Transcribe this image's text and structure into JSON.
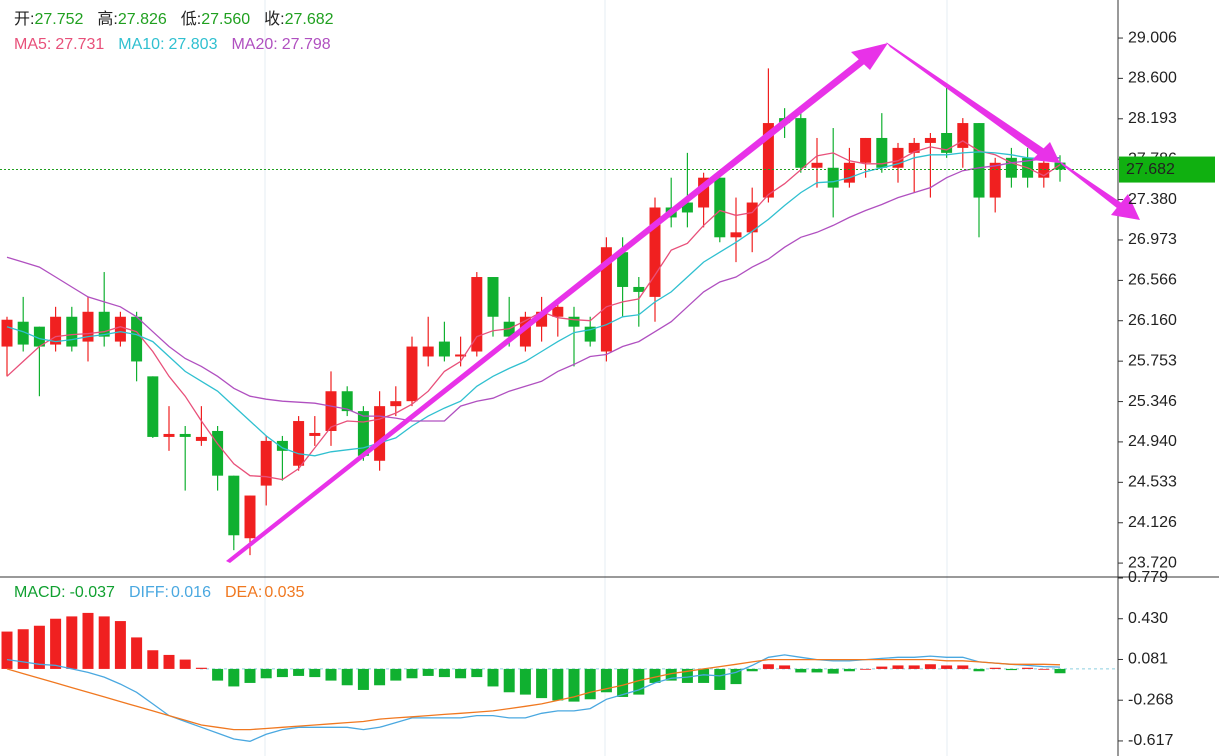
{
  "chart_data": {
    "type": "candlestick",
    "header": [
      {
        "label": "开:",
        "value": {
          "value": 27.752,
          "label": "27.752"
        }
      },
      {
        "label": "高:",
        "value": {
          "value": 27.826,
          "label": "27.826"
        }
      },
      {
        "label": "低:",
        "value": {
          "value": 27.56,
          "label": "27.560"
        }
      },
      {
        "label": "收:",
        "value": {
          "value": 27.682,
          "label": "27.682"
        }
      }
    ],
    "current_price": 27.682,
    "up_color": "#f02020",
    "down_color": "#10b030",
    "ylim": [
      23.6,
      29.389
    ],
    "yticks": [
      29.006,
      {
        "value": 28.6,
        "label": "28.600"
      },
      28.193,
      27.786,
      {
        "value": 27.38,
        "label": "27.380"
      },
      26.973,
      26.566,
      {
        "value": 26.16,
        "label": "26.160"
      },
      25.753,
      25.346,
      {
        "value": 24.94,
        "label": "24.940"
      },
      24.533,
      24.126,
      {
        "value": 23.72,
        "label": "23.720"
      }
    ],
    "candles": {
      "open": [
        25.9,
        26.15,
        26.1,
        25.92,
        26.2,
        25.95,
        26.25,
        25.95,
        26.2,
        25.6,
        24.99,
        25.02,
        24.95,
        25.05,
        24.6,
        23.97,
        24.5,
        24.95,
        24.7,
        25.0,
        25.05,
        25.45,
        25.25,
        24.75,
        25.3,
        25.35,
        25.8,
        25.95,
        25.8,
        25.85,
        26.6,
        26.15,
        25.9,
        26.1,
        26.2,
        26.2,
        26.1,
        25.85,
        26.85,
        26.5,
        26.4,
        27.3,
        27.35,
        27.3,
        27.6,
        27.0,
        27.05,
        27.4,
        28.2,
        28.2,
        27.7,
        27.7,
        27.55,
        27.75,
        28.0,
        27.7,
        27.85,
        27.95,
        28.05,
        27.9,
        28.15,
        27.4,
        27.8,
        27.8,
        27.6,
        27.752
      ],
      "high": [
        26.2,
        26.4,
        26.1,
        26.3,
        26.3,
        26.4,
        26.65,
        26.25,
        26.25,
        25.6,
        25.3,
        25.1,
        25.3,
        25.1,
        24.6,
        24.4,
        25.0,
        25.0,
        25.2,
        25.2,
        25.65,
        25.5,
        25.3,
        25.45,
        25.5,
        26.0,
        26.2,
        26.15,
        26.0,
        26.65,
        26.6,
        26.4,
        26.25,
        26.4,
        26.35,
        26.3,
        26.2,
        27.0,
        27.0,
        26.6,
        27.4,
        27.6,
        27.85,
        27.65,
        27.6,
        27.4,
        27.5,
        28.7,
        28.3,
        28.25,
        28.0,
        28.1,
        27.9,
        28.0,
        28.25,
        27.95,
        28.0,
        28.05,
        28.55,
        28.2,
        28.15,
        27.8,
        27.9,
        27.9,
        27.85,
        27.826
      ],
      "low": [
        25.6,
        25.85,
        25.4,
        25.85,
        25.85,
        25.75,
        25.9,
        25.9,
        25.55,
        24.98,
        24.85,
        24.45,
        24.9,
        24.45,
        23.85,
        23.8,
        24.3,
        24.55,
        24.65,
        24.9,
        24.9,
        25.2,
        24.75,
        24.65,
        25.2,
        25.3,
        25.7,
        25.75,
        25.7,
        25.8,
        26.0,
        25.9,
        25.85,
        25.95,
        26.0,
        25.7,
        25.9,
        25.75,
        26.2,
        26.1,
        26.15,
        27.1,
        27.1,
        27.1,
        26.95,
        26.75,
        26.85,
        27.35,
        28.0,
        27.65,
        27.5,
        27.2,
        27.5,
        27.6,
        27.65,
        27.55,
        27.45,
        27.4,
        27.8,
        27.7,
        27.0,
        27.25,
        27.5,
        27.5,
        27.5,
        27.56
      ],
      "close": [
        26.17,
        25.92,
        25.9,
        26.2,
        25.9,
        26.25,
        26.0,
        26.2,
        25.75,
        24.99,
        25.02,
        24.99,
        24.99,
        24.6,
        24.0,
        24.4,
        24.95,
        24.85,
        25.15,
        25.03,
        25.45,
        25.25,
        24.8,
        25.3,
        25.35,
        25.9,
        25.9,
        25.8,
        25.82,
        26.6,
        26.2,
        26.0,
        26.2,
        26.25,
        26.3,
        26.1,
        25.95,
        26.9,
        26.5,
        26.45,
        27.3,
        27.2,
        27.25,
        27.6,
        27.0,
        27.05,
        27.35,
        28.15,
        28.15,
        27.7,
        27.75,
        27.5,
        27.75,
        28.0,
        27.7,
        27.9,
        27.95,
        28.0,
        27.85,
        28.15,
        27.4,
        27.75,
        27.6,
        27.6,
        27.75,
        27.682
      ]
    },
    "series": [
      {
        "name": "MA5:",
        "color": "#e8507a",
        "values": [
          25.6,
          25.75,
          25.9,
          26.0,
          26.02,
          26.03,
          26.05,
          26.1,
          26.05,
          25.85,
          25.6,
          25.4,
          25.15,
          24.92,
          24.72,
          24.6,
          24.59,
          24.56,
          24.67,
          24.88,
          25.09,
          25.15,
          25.14,
          25.17,
          25.23,
          25.32,
          25.45,
          25.65,
          25.75,
          26.0,
          26.06,
          26.08,
          26.16,
          26.25,
          26.19,
          26.17,
          26.16,
          26.3,
          26.35,
          26.38,
          26.62,
          26.87,
          26.94,
          27.12,
          27.27,
          27.22,
          27.25,
          27.43,
          27.54,
          27.68,
          27.82,
          27.85,
          27.77,
          27.74,
          27.74,
          27.77,
          27.86,
          27.91,
          27.88,
          27.97,
          27.87,
          27.83,
          27.75,
          27.7,
          27.62,
          27.731
        ]
      },
      {
        "name": "MA10:",
        "color": "#30c0d0",
        "values": [
          26.1,
          26.05,
          25.98,
          25.95,
          25.97,
          26.0,
          26.02,
          26.05,
          26.02,
          25.95,
          25.8,
          25.65,
          25.55,
          25.45,
          25.3,
          25.15,
          25.0,
          24.88,
          24.82,
          24.8,
          24.84,
          24.86,
          24.88,
          24.93,
          24.98,
          25.1,
          25.2,
          25.28,
          25.35,
          25.5,
          25.6,
          25.68,
          25.75,
          25.85,
          25.95,
          26.04,
          26.07,
          26.12,
          26.2,
          26.22,
          26.35,
          26.45,
          26.6,
          26.75,
          26.85,
          26.95,
          27.06,
          27.18,
          27.32,
          27.45,
          27.55,
          27.56,
          27.6,
          27.66,
          27.7,
          27.74,
          27.8,
          27.83,
          27.83,
          27.85,
          27.86,
          27.85,
          27.83,
          27.8,
          27.79,
          27.803
        ]
      },
      {
        "name": "MA20:",
        "color": "#b050c0",
        "values": [
          26.8,
          26.75,
          26.7,
          26.6,
          26.5,
          26.4,
          26.35,
          26.3,
          26.2,
          26.05,
          25.9,
          25.78,
          25.7,
          25.6,
          25.48,
          25.4,
          25.37,
          25.35,
          25.34,
          25.33,
          25.3,
          25.27,
          25.2,
          25.2,
          25.18,
          25.15,
          25.15,
          25.15,
          25.3,
          25.35,
          25.38,
          25.45,
          25.5,
          25.55,
          25.65,
          25.72,
          25.8,
          25.82,
          25.9,
          25.95,
          26.05,
          26.15,
          26.3,
          26.45,
          26.55,
          26.6,
          26.7,
          26.78,
          26.9,
          27.0,
          27.05,
          27.12,
          27.2,
          27.27,
          27.33,
          27.4,
          27.45,
          27.5,
          27.6,
          27.67,
          27.7,
          27.72,
          27.75,
          27.77,
          27.79,
          27.798
        ]
      }
    ],
    "macd": {
      "ylim": [
        -0.746,
        0.779
      ],
      "yticks": [
        0.779,
        {
          "value": 0.43,
          "label": "0.430"
        },
        0.081,
        -0.268,
        -0.617
      ],
      "histogram": {
        "name": "MACD:",
        "color": "#10a030",
        "values": [
          0.32,
          0.34,
          0.37,
          0.43,
          0.45,
          0.48,
          0.45,
          0.41,
          0.27,
          0.16,
          0.12,
          0.08,
          0.01,
          -0.1,
          -0.15,
          -0.12,
          -0.08,
          -0.07,
          -0.06,
          -0.07,
          -0.1,
          -0.14,
          -0.18,
          -0.14,
          -0.1,
          -0.08,
          -0.06,
          -0.07,
          -0.08,
          -0.07,
          -0.15,
          -0.2,
          -0.22,
          -0.25,
          -0.27,
          -0.28,
          -0.26,
          -0.2,
          -0.24,
          -0.22,
          -0.12,
          -0.1,
          -0.12,
          -0.12,
          -0.18,
          -0.13,
          -0.02,
          0.04,
          0.03,
          -0.03,
          -0.03,
          -0.04,
          -0.02,
          0.0,
          0.02,
          0.03,
          0.03,
          0.04,
          0.03,
          0.03,
          -0.02,
          0.01,
          -0.01,
          0.01,
          0.0,
          -0.037
        ]
      },
      "series": [
        {
          "name": "DIFF:",
          "color": "#4aa8e0",
          "values": [
            0.08,
            0.06,
            0.04,
            0.03,
            0.0,
            -0.03,
            -0.07,
            -0.13,
            -0.2,
            -0.3,
            -0.4,
            -0.45,
            -0.5,
            -0.55,
            -0.6,
            -0.62,
            -0.56,
            -0.52,
            -0.5,
            -0.5,
            -0.5,
            -0.5,
            -0.52,
            -0.5,
            -0.46,
            -0.42,
            -0.42,
            -0.42,
            -0.42,
            -0.4,
            -0.4,
            -0.42,
            -0.42,
            -0.38,
            -0.36,
            -0.36,
            -0.34,
            -0.26,
            -0.22,
            -0.18,
            -0.12,
            -0.08,
            -0.07,
            -0.05,
            -0.06,
            -0.03,
            0.03,
            0.1,
            0.12,
            0.1,
            0.08,
            0.07,
            0.07,
            0.08,
            0.09,
            0.1,
            0.1,
            0.11,
            0.1,
            0.1,
            0.06,
            0.05,
            0.04,
            0.03,
            0.02,
            0.016
          ]
        },
        {
          "name": "DEA:",
          "color": "#f07820",
          "values": [
            0.0,
            -0.04,
            -0.08,
            -0.12,
            -0.16,
            -0.2,
            -0.24,
            -0.28,
            -0.32,
            -0.36,
            -0.4,
            -0.44,
            -0.48,
            -0.5,
            -0.52,
            -0.52,
            -0.51,
            -0.5,
            -0.49,
            -0.48,
            -0.47,
            -0.46,
            -0.45,
            -0.43,
            -0.42,
            -0.41,
            -0.4,
            -0.39,
            -0.38,
            -0.37,
            -0.36,
            -0.34,
            -0.32,
            -0.3,
            -0.27,
            -0.24,
            -0.2,
            -0.17,
            -0.14,
            -0.1,
            -0.07,
            -0.04,
            -0.02,
            0.0,
            0.02,
            0.04,
            0.06,
            0.08,
            0.08,
            0.08,
            0.08,
            0.08,
            0.08,
            0.08,
            0.08,
            0.08,
            0.08,
            0.08,
            0.07,
            0.07,
            0.06,
            0.05,
            0.04,
            0.04,
            0.04,
            0.035
          ]
        }
      ]
    }
  }
}
